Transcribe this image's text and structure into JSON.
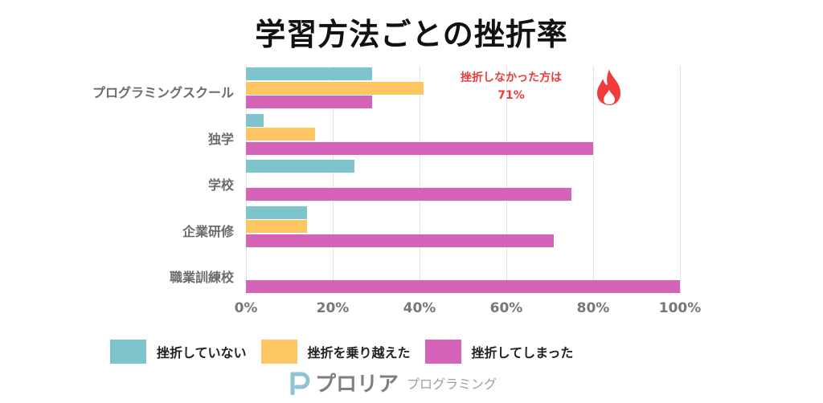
{
  "title": "学習方法ごとの挫折率",
  "annotation": {
    "line1": "挫折しなかった方は",
    "line2": "71%",
    "icon": "fire-icon",
    "color": "#ea3c3c"
  },
  "legend": [
    {
      "label": "挫折していない",
      "color": "#7ec4cc"
    },
    {
      "label": "挫折を乗り越えた",
      "color": "#fdc663"
    },
    {
      "label": "挫折してしまった",
      "color": "#d563b8"
    }
  ],
  "logo": {
    "main": "プロリア",
    "sub": "プログラミング"
  },
  "chart_data": {
    "type": "bar",
    "orientation": "horizontal",
    "title": "学習方法ごとの挫折率",
    "xlabel": "",
    "ylabel": "",
    "xlim": [
      0,
      100
    ],
    "x_ticks": [
      "0%",
      "20%",
      "40%",
      "60%",
      "80%",
      "100%"
    ],
    "grid": true,
    "legend_position": "bottom",
    "categories": [
      "プログラミングスクール",
      "独学",
      "学校",
      "企業研修",
      "職業訓練校"
    ],
    "series": [
      {
        "name": "挫折していない",
        "color": "#7ec4cc",
        "values": [
          29,
          4,
          25,
          14,
          0
        ]
      },
      {
        "name": "挫折を乗り越えた",
        "color": "#fdc663",
        "values": [
          41,
          16,
          0,
          14,
          0
        ]
      },
      {
        "name": "挫折してしまった",
        "color": "#d563b8",
        "values": [
          29,
          80,
          75,
          71,
          100
        ]
      }
    ],
    "annotations": [
      "挫折しなかった方は 71%"
    ]
  }
}
